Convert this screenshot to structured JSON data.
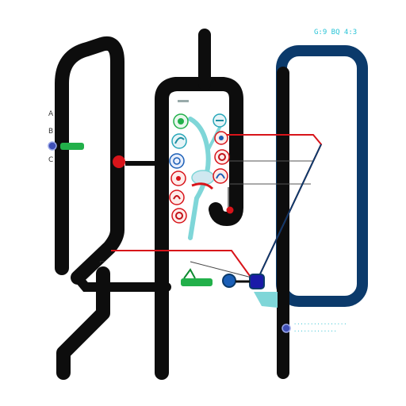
{
  "header": {
    "code_label": "G:9 BQ 4:3",
    "accent": "#27c3d6"
  },
  "left_panel": {
    "glyph_a": "A",
    "glyph_b": "B",
    "glyph_c": "C"
  },
  "legend": {
    "caption_line_1": "················",
    "caption_line_2": "·············"
  },
  "colors": {
    "frame": "#0d0d0d",
    "navy": "#0b3a6b",
    "red": "#d8141a",
    "green": "#22b04a",
    "blue": "#1b5fb7",
    "teal": "#7fd6d8",
    "cyan": "#29bfd1"
  },
  "icons": {
    "left_column": [
      "tree-icon",
      "leaf-icon",
      "globe-icon",
      "flower-icon",
      "apple-icon",
      "rose-icon"
    ],
    "right_column": [
      "fish-icon",
      "bird-icon",
      "rose-icon",
      "shell-icon"
    ]
  }
}
